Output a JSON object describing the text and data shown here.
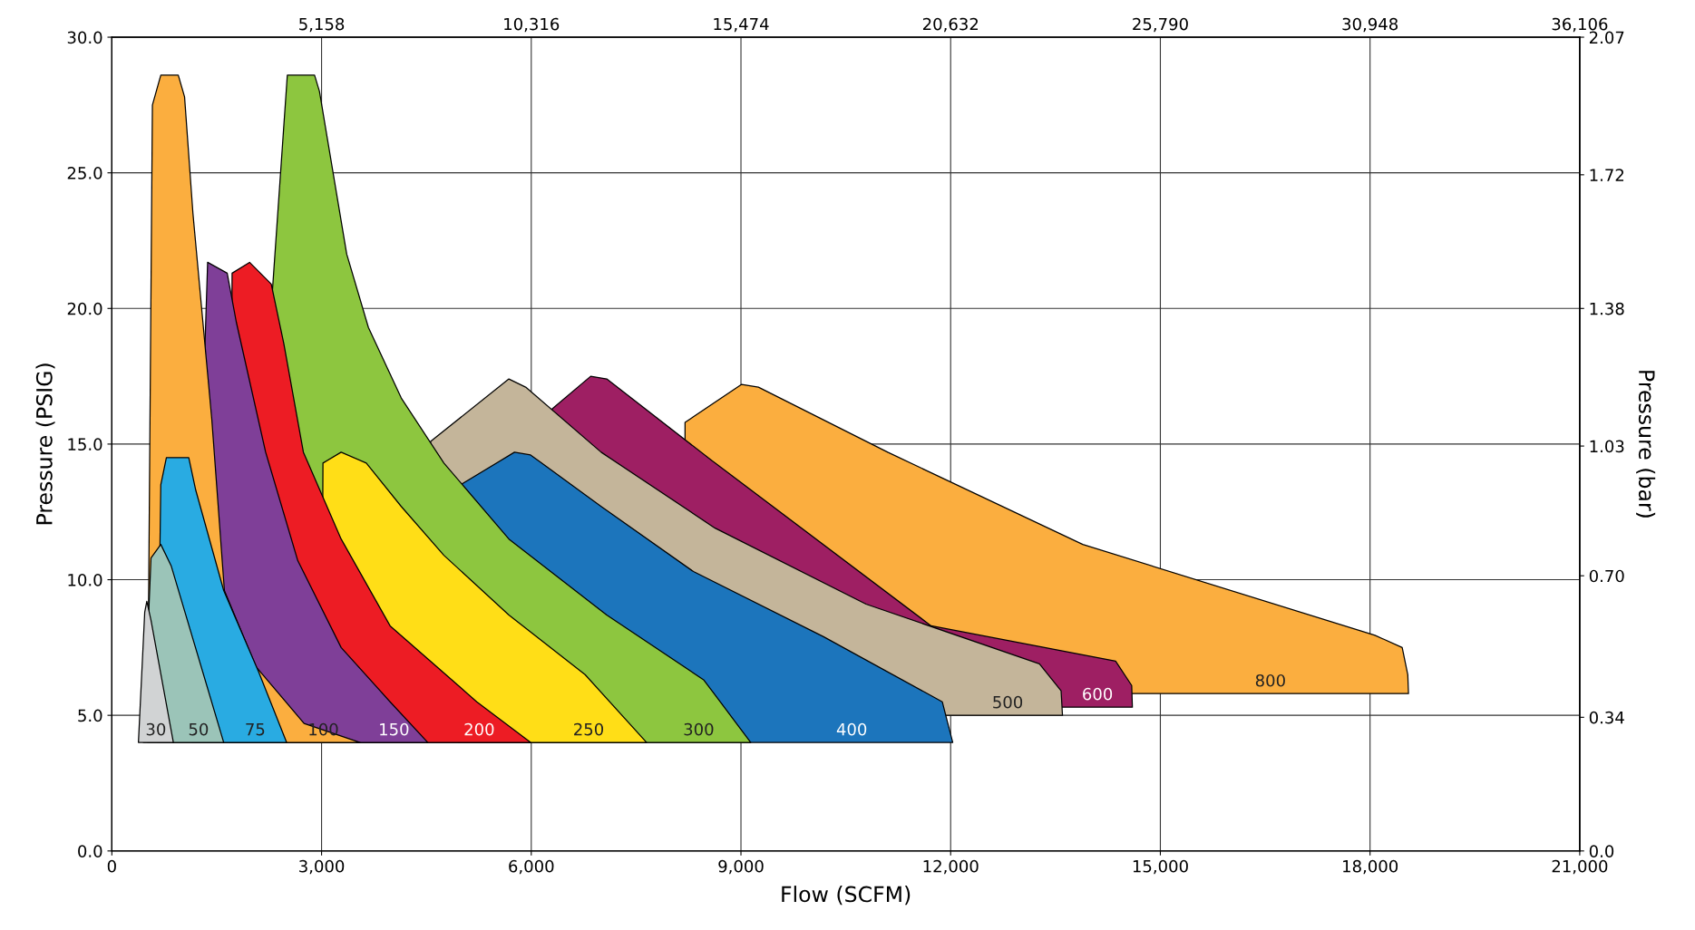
{
  "chart_data": {
    "type": "area",
    "xlabel": "Flow (SCFM)",
    "ylabel": "Pressure (PSIG)",
    "y2label": "Pressure (bar)",
    "xlim": [
      0,
      21000
    ],
    "xticks": [
      0,
      {
        "value": 3000,
        "label": "3,000"
      },
      {
        "value": 6000,
        "label": "6,000"
      },
      {
        "value": 9000,
        "label": "9,000"
      },
      {
        "value": 12000,
        "label": "12,000"
      },
      {
        "value": 15000,
        "label": "15,000"
      },
      {
        "value": 18000,
        "label": "18,000"
      },
      {
        "value": 21000,
        "label": "21,000"
      }
    ],
    "ylim": [
      0,
      30
    ],
    "yticks": [
      {
        "value": 0,
        "label": "0.0"
      },
      {
        "value": 5,
        "label": "5.0"
      },
      {
        "value": 10,
        "label": "10.0"
      },
      {
        "value": 15,
        "label": "15.0"
      },
      {
        "value": 20,
        "label": "20.0"
      },
      {
        "value": 25,
        "label": "25.0"
      },
      {
        "value": 30,
        "label": "30.0"
      }
    ],
    "y2lim": [
      0,
      2.07
    ],
    "y2ticks": [
      {
        "value": 0,
        "label": "0.0"
      },
      {
        "value": 0.34,
        "label": "0.34"
      },
      {
        "value": 0.7,
        "label": "0.70"
      },
      {
        "value": 1.03,
        "label": "1.03"
      },
      {
        "value": 1.38,
        "label": "1.38"
      },
      {
        "value": 1.72,
        "label": "1.72"
      },
      {
        "value": 2.07,
        "label": "2.07"
      }
    ],
    "x2lim": [
      0,
      36106
    ],
    "x2ticks": [
      {
        "value": 5158,
        "label": "5,158"
      },
      {
        "value": 10316,
        "label": "10,316"
      },
      {
        "value": 15474,
        "label": "15,474"
      },
      {
        "value": 20632,
        "label": "20,632"
      },
      {
        "value": 25790,
        "label": "25,790"
      },
      {
        "value": 30948,
        "label": "30,948"
      },
      {
        "value": 36106,
        "label": "36,106"
      }
    ],
    "grid": true,
    "legend": false,
    "series": [
      {
        "name": "30",
        "color": "#d1d3d4",
        "x": [
          380,
          470,
          500,
          560,
          880
        ],
        "values": [
          4,
          8.8,
          9.2,
          8.5,
          4
        ]
      },
      {
        "name": "50",
        "color": "#9bc4b8",
        "x": [
          450,
          560,
          700,
          850,
          1600
        ],
        "values": [
          4,
          10.8,
          11.3,
          10.5,
          4
        ]
      },
      {
        "name": "75",
        "color": "#29abe2",
        "x": [
          650,
          700,
          780,
          1100,
          1200,
          1600,
          2100,
          2500
        ],
        "values": [
          4,
          13.5,
          14.5,
          14.5,
          13.3,
          9.6,
          6.6,
          4
        ]
      },
      {
        "name": "100",
        "color": "#fbae3f",
        "x": [
          510,
          580,
          700,
          950,
          1040,
          1160,
          1430,
          1610,
          2060,
          2750,
          3550
        ],
        "values": [
          4,
          27.5,
          28.6,
          28.6,
          27.8,
          23.5,
          15.9,
          9.6,
          6.8,
          4.7,
          4
        ]
      },
      {
        "name": "150",
        "color": "#7f3f98",
        "x": [
          1150,
          1180,
          1370,
          1650,
          1780,
          2200,
          2660,
          3280,
          3980,
          4520
        ],
        "values": [
          4,
          null,
          21.7,
          21.3,
          19.5,
          14.7,
          10.7,
          7.5,
          5.5,
          4
        ]
      },
      {
        "name": "200",
        "color": "#ed1c24",
        "x": [
          1690,
          1720,
          1970,
          2280,
          2460,
          2740,
          3280,
          3980,
          5220,
          5990
        ],
        "values": [
          4,
          21.3,
          21.7,
          20.9,
          18.7,
          14.7,
          11.5,
          8.3,
          5.5,
          4
        ]
      },
      {
        "name": "250",
        "color": "#ffde17",
        "x": [
          3000,
          3020,
          3280,
          3640,
          4140,
          4750,
          5680,
          6770,
          7650
        ],
        "values": [
          4,
          14.3,
          14.7,
          14.3,
          12.7,
          10.9,
          8.7,
          6.5,
          4
        ]
      },
      {
        "name": "300",
        "color": "#8dc63f",
        "x": [
          1850,
          1870,
          2510,
          2900,
          2970,
          3360,
          3670,
          4140,
          4750,
          5680,
          7080,
          8470,
          9140
        ],
        "values": [
          4,
          null,
          28.6,
          28.6,
          28,
          22,
          19.3,
          16.7,
          14.3,
          11.5,
          8.7,
          6.3,
          4
        ]
      },
      {
        "name": "400",
        "color": "#1c75bc",
        "x": [
          4950,
          4990,
          5760,
          5990,
          7000,
          8320,
          10180,
          11880,
          12030
        ],
        "values": [
          4,
          13.5,
          14.7,
          14.6,
          12.7,
          10.3,
          7.9,
          5.5,
          4
        ]
      },
      {
        "name": "500",
        "color": "#c4b59a",
        "x": [
          4560,
          5680,
          5920,
          7000,
          8630,
          10790,
          13270,
          13580,
          13600
        ],
        "values": [
          15.1,
          17.4,
          17.1,
          14.7,
          11.9,
          9.1,
          6.9,
          5.9,
          5
        ]
      },
      {
        "name": "600",
        "color": "#9e1f63",
        "x": [
          6300,
          6850,
          7080,
          8630,
          11720,
          14360,
          14590,
          14600
        ],
        "values": [
          16.3,
          17.5,
          17.4,
          14.3,
          8.3,
          7,
          6.1,
          5.3
        ]
      },
      {
        "name": "800",
        "color": "#fbae3f",
        "x": [
          8200,
          9010,
          9250,
          11100,
          13890,
          18070,
          18460,
          18540,
          18550
        ],
        "values": [
          15.8,
          17.2,
          17.1,
          14.7,
          11.3,
          7.95,
          7.5,
          6.5,
          5.8
        ]
      }
    ]
  }
}
